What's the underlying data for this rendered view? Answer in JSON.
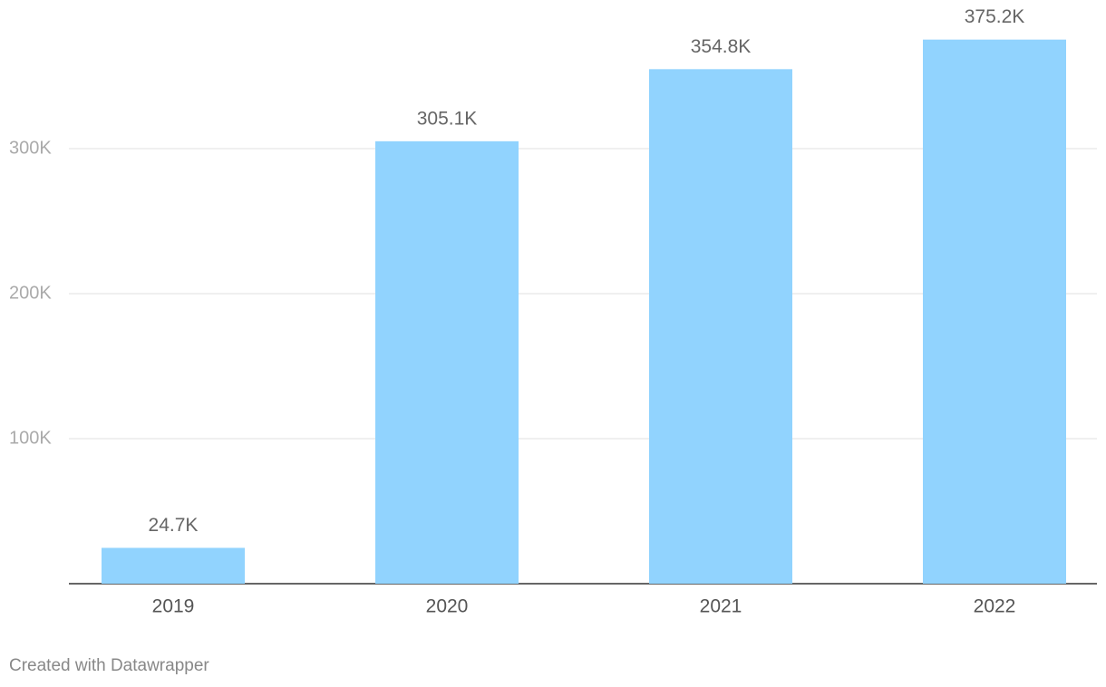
{
  "chart_data": {
    "type": "bar",
    "categories": [
      "2019",
      "2020",
      "2021",
      "2022"
    ],
    "values": [
      24700,
      305100,
      354800,
      375200
    ],
    "value_labels": [
      "24.7K",
      "305.1K",
      "354.8K",
      "375.2K"
    ],
    "color": "#91d3fe",
    "ylim": [
      0,
      400000
    ],
    "yticks": [
      {
        "value": 100000,
        "label": "100K"
      },
      {
        "value": 200000,
        "label": "200K"
      },
      {
        "value": 300000,
        "label": "300K"
      }
    ],
    "grid": true,
    "footer": "Created with Datawrapper"
  }
}
